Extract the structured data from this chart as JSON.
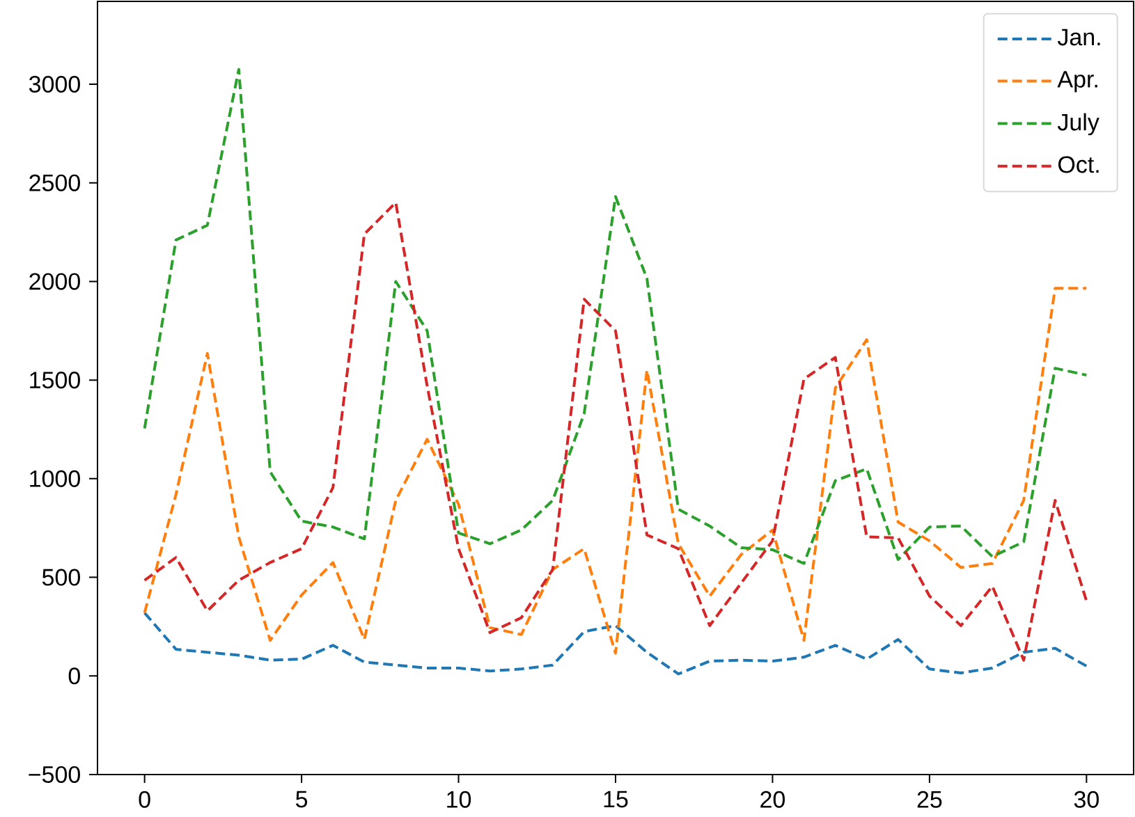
{
  "chart_data": {
    "type": "line",
    "x": [
      0,
      1,
      2,
      3,
      4,
      5,
      6,
      7,
      8,
      9,
      10,
      11,
      12,
      13,
      14,
      15,
      16,
      17,
      18,
      19,
      20,
      21,
      22,
      23,
      24,
      25,
      26,
      27,
      28,
      29,
      30
    ],
    "series": [
      {
        "name": "Jan.",
        "color": "#1f77b4",
        "values": [
          320,
          135,
          120,
          105,
          80,
          85,
          155,
          70,
          55,
          40,
          40,
          25,
          35,
          55,
          225,
          255,
          120,
          10,
          75,
          80,
          75,
          95,
          155,
          85,
          185,
          35,
          15,
          40,
          120,
          140,
          50
        ]
      },
      {
        "name": "Apr.",
        "color": "#ff7f0e",
        "values": [
          320,
          920,
          1635,
          705,
          180,
          410,
          575,
          185,
          890,
          1200,
          870,
          245,
          210,
          540,
          645,
          115,
          1550,
          670,
          405,
          615,
          740,
          180,
          1460,
          1705,
          780,
          685,
          550,
          570,
          890,
          1965,
          1965
        ]
      },
      {
        "name": "July",
        "color": "#2ca02c",
        "values": [
          1255,
          2210,
          2285,
          3075,
          1035,
          785,
          755,
          695,
          2000,
          1750,
          725,
          670,
          740,
          890,
          1330,
          2430,
          2015,
          845,
          760,
          650,
          640,
          570,
          990,
          1050,
          590,
          755,
          760,
          605,
          680,
          1560,
          1525
        ]
      },
      {
        "name": "Oct.",
        "color": "#d62728",
        "values": [
          485,
          600,
          330,
          485,
          575,
          645,
          955,
          2240,
          2400,
          1470,
          645,
          220,
          295,
          540,
          1910,
          1750,
          715,
          645,
          255,
          470,
          685,
          1505,
          1615,
          705,
          700,
          405,
          255,
          455,
          80,
          890,
          380
        ]
      }
    ],
    "xlim": [
      -1.5,
      31.5
    ],
    "ylim": [
      -500,
      3420
    ],
    "xticks": [
      0,
      5,
      10,
      15,
      20,
      25,
      30
    ],
    "yticks": [
      {
        "value": -500,
        "label": "−500"
      },
      0,
      500,
      1000,
      1500,
      2000,
      2500,
      3000
    ],
    "legend": "top right",
    "line_style": "dashed",
    "grid": false
  }
}
